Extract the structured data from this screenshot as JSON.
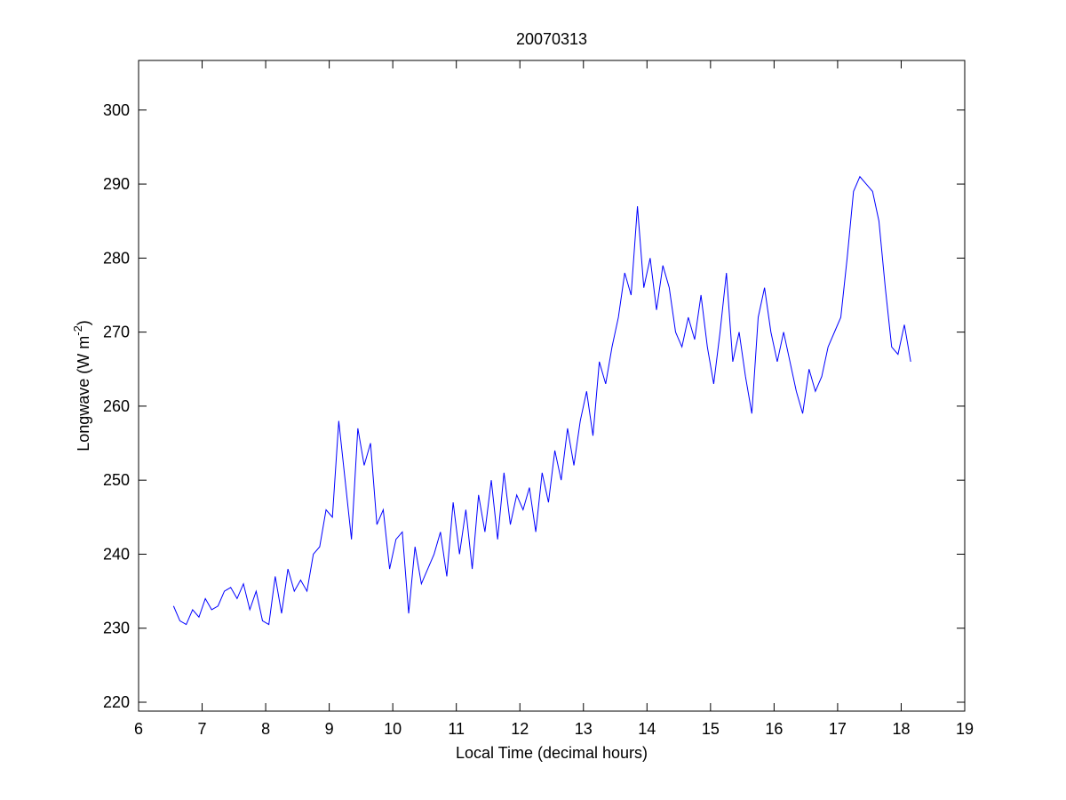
{
  "chart_data": {
    "type": "line",
    "title": "20070313",
    "xlabel": "Local Time (decimal hours)",
    "ylabel_parts": [
      "Longwave (W m",
      "-2",
      ")"
    ],
    "xlim": [
      6,
      19
    ],
    "ylim": [
      218.8,
      306.7
    ],
    "xticks": [
      6,
      7,
      8,
      9,
      10,
      11,
      12,
      13,
      14,
      15,
      16,
      17,
      18,
      19
    ],
    "yticks": [
      220,
      230,
      240,
      250,
      260,
      270,
      280,
      290,
      300
    ],
    "grid": false,
    "series": [
      {
        "name": "Longwave",
        "color": "#0000ff",
        "x": [
          6.55,
          6.65,
          6.75,
          6.85,
          6.95,
          7.05,
          7.15,
          7.25,
          7.35,
          7.45,
          7.55,
          7.65,
          7.75,
          7.85,
          7.95,
          8.05,
          8.15,
          8.25,
          8.35,
          8.45,
          8.55,
          8.65,
          8.75,
          8.85,
          8.95,
          9.05,
          9.15,
          9.25,
          9.35,
          9.45,
          9.55,
          9.65,
          9.75,
          9.85,
          9.95,
          10.05,
          10.15,
          10.25,
          10.35,
          10.45,
          10.55,
          10.65,
          10.75,
          10.85,
          10.95,
          11.05,
          11.15,
          11.25,
          11.35,
          11.45,
          11.55,
          11.65,
          11.75,
          11.85,
          11.95,
          12.05,
          12.15,
          12.25,
          12.35,
          12.45,
          12.55,
          12.65,
          12.75,
          12.85,
          12.95,
          13.05,
          13.15,
          13.25,
          13.35,
          13.45,
          13.55,
          13.65,
          13.75,
          13.85,
          13.95,
          14.05,
          14.15,
          14.25,
          14.35,
          14.45,
          14.55,
          14.65,
          14.75,
          14.85,
          14.95,
          15.05,
          15.15,
          15.25,
          15.35,
          15.45,
          15.55,
          15.65,
          15.75,
          15.85,
          15.95,
          16.05,
          16.15,
          16.25,
          16.35,
          16.45,
          16.55,
          16.65,
          16.75,
          16.85,
          16.95,
          17.05,
          17.15,
          17.25,
          17.35,
          17.45,
          17.55,
          17.65,
          17.75,
          17.85,
          17.95,
          18.05,
          18.15
        ],
        "values": [
          233,
          231,
          230.5,
          232.5,
          231.5,
          234,
          232.5,
          233,
          235,
          235.5,
          234,
          236,
          232.5,
          235,
          231,
          230.5,
          237,
          232,
          238,
          235,
          236.5,
          235,
          240,
          241,
          246,
          245,
          258,
          250,
          242,
          257,
          252,
          255,
          244,
          246,
          238,
          242,
          243,
          232,
          241,
          236,
          238,
          240,
          243,
          237,
          247,
          240,
          246,
          238,
          248,
          243,
          250,
          242,
          251,
          244,
          248,
          246,
          249,
          243,
          251,
          247,
          254,
          250,
          257,
          252,
          258,
          262,
          256,
          266,
          263,
          268,
          272,
          278,
          275,
          287,
          276,
          280,
          273,
          279,
          276,
          270,
          268,
          272,
          269,
          275,
          268,
          263,
          270,
          278,
          266,
          270,
          264,
          259,
          272,
          276,
          270,
          266,
          270,
          266,
          262,
          259,
          265,
          262,
          264,
          268,
          270,
          272,
          280,
          289,
          291,
          290,
          289,
          285,
          276,
          268,
          267,
          271,
          266
        ]
      }
    ]
  }
}
